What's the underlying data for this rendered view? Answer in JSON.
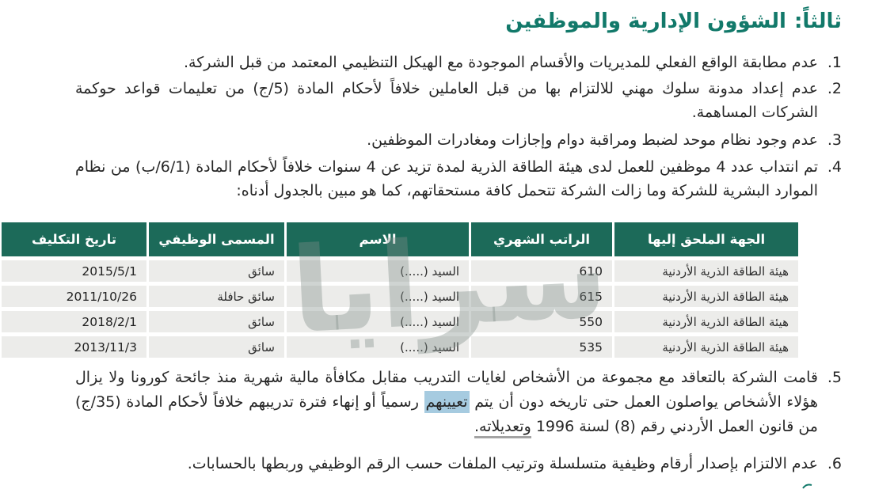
{
  "colors": {
    "title_green": "#12796a",
    "table_header_green": "#1c6a59",
    "row_gray": "#ececea",
    "highlight_blue": "#a6cbe0",
    "underline_gray": "#a3a3a3"
  },
  "header": {
    "section_label": "ثالثاً:",
    "section_title": "الشؤون الإدارية والموظفين"
  },
  "items": {
    "i1": {
      "num": "1.",
      "text": "عدم مطابقة الواقع الفعلي للمديريات والأقسام الموجودة مع الهيكل التنظيمي المعتمد من قبل الشركة."
    },
    "i2": {
      "num": "2.",
      "text": "عدم إعداد مدونة سلوك مهني للالتزام بها من قبل العاملين خلافاً لأحكام المادة (5/ج) من تعليمات قواعد حوكمة الشركات المساهمة."
    },
    "i3": {
      "num": "3.",
      "text": "عدم وجود نظام موحد لضبط ومراقبة دوام وإجازات ومغادرات الموظفين."
    },
    "i4": {
      "num": "4.",
      "text": "تم انتداب عدد 4 موظفين للعمل لدى هيئة الطاقة الذرية لمدة تزيد عن 4 سنوات خلافاً لأحكام المادة (6/1/ب) من نظام الموارد البشرية للشركة وما زالت الشركة تتحمل كافة مستحقاتهم، كما هو مبين بالجدول أدناه:"
    },
    "i5": {
      "num": "5.",
      "seg1": "قامت الشركة بالتعاقد مع مجموعة من الأشخاص لغايات التدريب مقابل مكافأة مالية شهرية منذ جائحة كورونا ولا يزال هؤلاء الأشخاص يواصلون العمل حتى تاريخه دون أن يتم ",
      "highlight": "تعيينهم",
      "seg2": " رسمياً أو إنهاء فترة تدريبهم خلافاً لأحكام المادة (35/ج) من قانون العمل الأردني رقم (8) لسنة 1996 ",
      "underlined": "وتعديلاته."
    },
    "i6": {
      "num": "6.",
      "text": "عدم الالتزام بإصدار أرقام وظيفية متسلسلة وترتيب الملفات حسب الرقم الوظيفي وربطها بالحسابات."
    }
  },
  "table": {
    "columns": [
      "الجهة الملحق إليها",
      "الراتب الشهري",
      "الاسم",
      "المسمى الوظيفي",
      "تاريخ التكليف"
    ],
    "rows": [
      [
        "هيئة الطاقة الذرية الأردنية",
        "610",
        "السيد (.....)",
        "سائق",
        "2015/5/1"
      ],
      [
        "هيئة الطاقة الذرية الأردنية",
        "615",
        "السيد (.....)",
        "سائق حافلة",
        "2011/10/26"
      ],
      [
        "هيئة الطاقة الذرية الأردنية",
        "550",
        "السيد (.....)",
        "سائق",
        "2018/2/1"
      ],
      [
        "هيئة الطاقة الذرية الأردنية",
        "535",
        "السيد (.....)",
        "سائق",
        "2013/11/3"
      ]
    ]
  },
  "watermark": {
    "text": "سرايا"
  }
}
